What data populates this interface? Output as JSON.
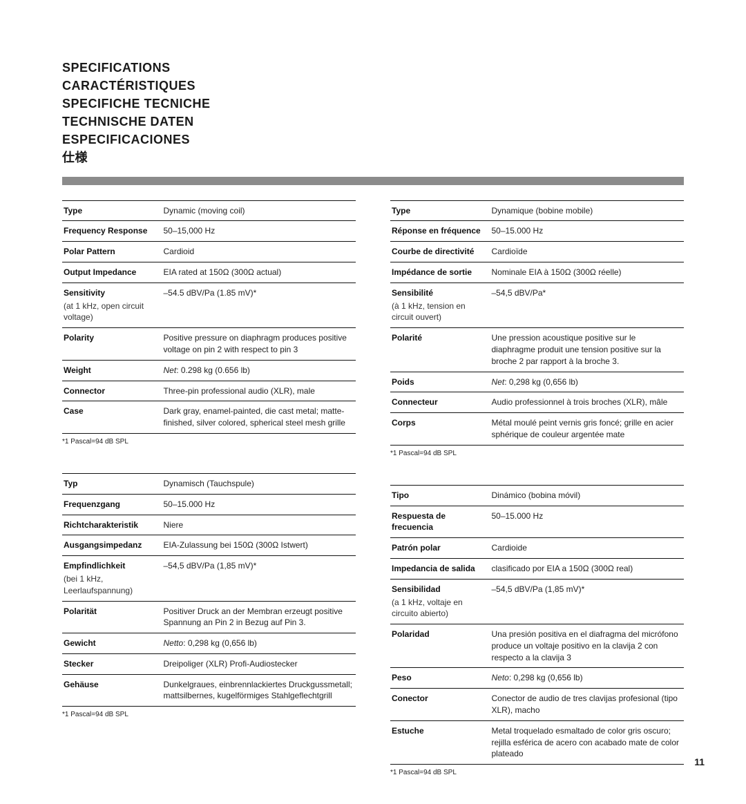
{
  "page_number": "11",
  "headings": [
    "SPECIFICATIONS",
    "CARACTÉRISTIQUES",
    "SPECIFICHE TECNICHE",
    "TECHNISCHE DATEN",
    "ESPECIFICACIONES",
    "仕様"
  ],
  "colors": {
    "rule": "#8b8b8b",
    "text": "#1a1a1a",
    "border": "#111111",
    "background": "#ffffff"
  },
  "footnote": "*1 Pascal=94 dB SPL",
  "tables": {
    "en": {
      "rows": [
        {
          "label": "Type",
          "sub": "",
          "value": "Dynamic (moving coil)"
        },
        {
          "label": "Frequency Response",
          "sub": "",
          "value": "50–15,000 Hz"
        },
        {
          "label": "Polar Pattern",
          "sub": "",
          "value": "Cardioid"
        },
        {
          "label": "Output Impedance",
          "sub": "",
          "value": "EIA rated at 150Ω (300Ω actual)"
        },
        {
          "label": "Sensitivity",
          "sub": "(at 1 kHz, open circuit voltage)",
          "value": "–54.5 dBV/Pa (1.85 mV)*"
        },
        {
          "label": "Polarity",
          "sub": "",
          "value": "Positive pressure on diaphragm produces positive voltage on pin 2 with respect to pin 3"
        },
        {
          "label": "Weight",
          "sub": "",
          "value": "",
          "value_html": "<span class='ital'>Net</span>: 0.298 kg (0.656 lb)"
        },
        {
          "label": "Connector",
          "sub": "",
          "value": "Three-pin professional audio (XLR), male"
        },
        {
          "label": "Case",
          "sub": "",
          "value": "Dark gray, enamel-painted, die cast metal; matte-finished, silver colored, spherical steel mesh grille"
        }
      ]
    },
    "fr": {
      "rows": [
        {
          "label": "Type",
          "sub": "",
          "value": "Dynamique (bobine mobile)"
        },
        {
          "label": "Réponse en fréquence",
          "sub": "",
          "value": "50–15.000 Hz"
        },
        {
          "label": "Courbe de directivité",
          "sub": "",
          "value": "Cardioïde"
        },
        {
          "label": "Impédance de sortie",
          "sub": "",
          "value": "Nominale EIA à 150Ω (300Ω réelle)"
        },
        {
          "label": "Sensibilité",
          "sub": "(à 1 kHz, tension en circuit ouvert)",
          "value": "–54,5 dBV/Pa*"
        },
        {
          "label": "Polarité",
          "sub": "",
          "value": "Une pression acoustique positive sur le diaphragme produit une tension positive sur la broche 2 par rapport à la broche 3."
        },
        {
          "label": "Poids",
          "sub": "",
          "value": "",
          "value_html": "<span class='ital'>Net</span>: 0,298 kg (0,656 lb)"
        },
        {
          "label": "Connecteur",
          "sub": "",
          "value": "Audio professionnel à trois broches (XLR), mâle"
        },
        {
          "label": "Corps",
          "sub": "",
          "value": "Métal moulé peint vernis gris foncé; grille en acier sphérique de couleur argentée mate"
        }
      ]
    },
    "de": {
      "rows": [
        {
          "label": "Typ",
          "sub": "",
          "value": "Dynamisch (Tauchspule)"
        },
        {
          "label": "Frequenzgang",
          "sub": "",
          "value": "50–15.000 Hz"
        },
        {
          "label": "Richtcharakteristik",
          "sub": "",
          "value": "Niere"
        },
        {
          "label": "Ausgangsimpedanz",
          "sub": "",
          "value": "EIA-Zulassung bei 150Ω (300Ω Istwert)"
        },
        {
          "label": "Empfindlichkeit",
          "sub": "(bei 1 kHz, Leerlaufspannung)",
          "value": "–54,5 dBV/Pa (1,85 mV)*"
        },
        {
          "label": "Polarität",
          "sub": "",
          "value": "Positiver Druck an der Membran erzeugt positive Spannung an Pin 2 in Bezug auf Pin 3."
        },
        {
          "label": "Gewicht",
          "sub": "",
          "value": "",
          "value_html": "<span class='ital'>Netto</span>: 0,298 kg (0,656 lb)"
        },
        {
          "label": "Stecker",
          "sub": "",
          "value": "Dreipoliger (XLR) Profi-Audiostecker"
        },
        {
          "label": "Gehäuse",
          "sub": "",
          "value": "Dunkelgraues, einbrennlackiertes Druckgussmetall; mattsilbernes, kugelförmiges Stahlgeflechtgrill"
        }
      ]
    },
    "es": {
      "rows": [
        {
          "label": "Tipo",
          "sub": "",
          "value": "Dinámico (bobina móvil)"
        },
        {
          "label": "Respuesta de frecuencia",
          "sub": "",
          "value": "50–15.000 Hz"
        },
        {
          "label": "Patrón polar",
          "sub": "",
          "value": "Cardioide"
        },
        {
          "label": "Impedancia de salida",
          "sub": "",
          "value": "clasificado por EIA a 150Ω (300Ω real)"
        },
        {
          "label": "Sensibilidad",
          "sub": "(a 1 kHz, voltaje en circuito abierto)",
          "value": "–54,5 dBV/Pa (1,85 mV)*"
        },
        {
          "label": "Polaridad",
          "sub": "",
          "value": "Una presión positiva en el diafragma del micrófono produce un voltaje positivo en la clavija 2 con respecto a la clavija 3"
        },
        {
          "label": "Peso",
          "sub": "",
          "value": "",
          "value_html": "<span class='ital'>Neto</span>: 0,298 kg (0,656 lb)"
        },
        {
          "label": "Conector",
          "sub": "",
          "value": "Conector de audio de tres clavijas profesional (tipo XLR), macho"
        },
        {
          "label": "Estuche",
          "sub": "",
          "value": "Metal troquelado esmaltado de color gris oscuro; rejilla esférica de acero con acabado mate de color plateado"
        }
      ]
    }
  }
}
